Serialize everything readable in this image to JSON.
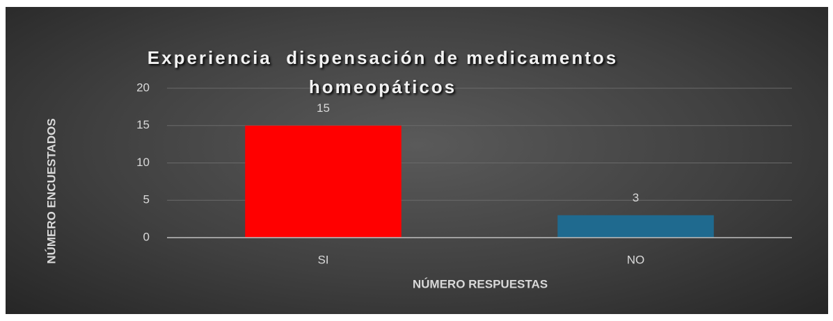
{
  "chart_data": {
    "type": "bar",
    "title": "Experiencia  dispensación de medicamentos homeopáticos",
    "categories": [
      "SI",
      "NO"
    ],
    "values": [
      15,
      3
    ],
    "colors": [
      "#ff0000",
      "#1f6a8f"
    ],
    "xlabel": "NÚMERO RESPUESTAS",
    "ylabel": "NÚMERO ENCUESTADOS",
    "ylim": [
      0,
      20
    ],
    "yticks": [
      0,
      5,
      10,
      15,
      20
    ],
    "grid": true
  }
}
